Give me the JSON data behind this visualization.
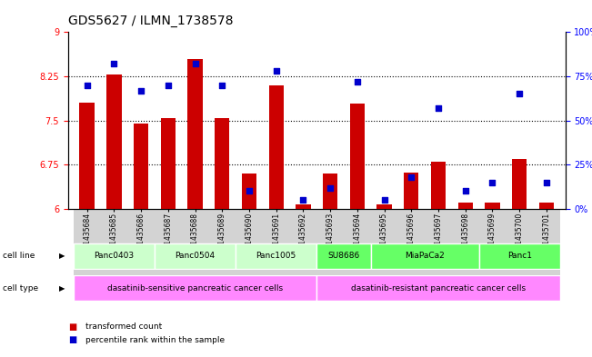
{
  "title": "GDS5627 / ILMN_1738578",
  "samples": [
    "GSM1435684",
    "GSM1435685",
    "GSM1435686",
    "GSM1435687",
    "GSM1435688",
    "GSM1435689",
    "GSM1435690",
    "GSM1435691",
    "GSM1435692",
    "GSM1435693",
    "GSM1435694",
    "GSM1435695",
    "GSM1435696",
    "GSM1435697",
    "GSM1435698",
    "GSM1435699",
    "GSM1435700",
    "GSM1435701"
  ],
  "transformed_count": [
    7.8,
    8.28,
    7.45,
    7.54,
    8.55,
    7.54,
    6.6,
    8.1,
    6.08,
    6.6,
    7.78,
    6.08,
    6.62,
    6.8,
    6.1,
    6.1,
    6.85,
    6.1
  ],
  "percentile_rank": [
    70,
    82,
    67,
    70,
    82,
    70,
    10,
    78,
    5,
    12,
    72,
    5,
    18,
    57,
    10,
    15,
    65,
    15
  ],
  "ylim_left": [
    6,
    9
  ],
  "ylim_right": [
    0,
    100
  ],
  "yticks_left": [
    6,
    6.75,
    7.5,
    8.25,
    9
  ],
  "ytick_labels_left": [
    "6",
    "6.75",
    "7.5",
    "8.25",
    "9"
  ],
  "yticks_right": [
    0,
    25,
    50,
    75,
    100
  ],
  "ytick_labels_right": [
    "0%",
    "25%",
    "50%",
    "75%",
    "100%"
  ],
  "bar_color": "#cc0000",
  "dot_color": "#0000cc",
  "bar_width": 0.55,
  "cell_line_groups": [
    {
      "label": "Panc0403",
      "start": 0,
      "end": 4,
      "color": "#ccffcc"
    },
    {
      "label": "Panc0504",
      "start": 4,
      "end": 8,
      "color": "#ccffcc"
    },
    {
      "label": "Panc1005",
      "start": 8,
      "end": 12,
      "color": "#ccffcc"
    },
    {
      "label": "SU8686",
      "start": 12,
      "end": 15,
      "color": "#66ff66"
    },
    {
      "label": "MiaPaCa2",
      "start": 15,
      "end": 30,
      "color": "#66ff66"
    },
    {
      "label": "Panc1",
      "start": 30,
      "end": 36,
      "color": "#66ff66"
    }
  ],
  "cell_type_groups": [
    {
      "label": "dasatinib-sensitive pancreatic cancer cells",
      "start": 0,
      "end": 9,
      "color": "#ff99ff"
    },
    {
      "label": "dasatinib-resistant pancreatic cancer cells",
      "start": 9,
      "end": 18,
      "color": "#ff99ff"
    }
  ],
  "cell_line_label": "cell line",
  "cell_type_label": "cell type",
  "legend_items": [
    {
      "label": "transformed count",
      "color": "#cc0000"
    },
    {
      "label": "percentile rank within the sample",
      "color": "#0000cc"
    }
  ],
  "background_color": "white",
  "title_fontsize": 10,
  "sample_tick_fontsize": 5.5,
  "ytick_fontsize": 7,
  "annotation_fontsize": 7
}
